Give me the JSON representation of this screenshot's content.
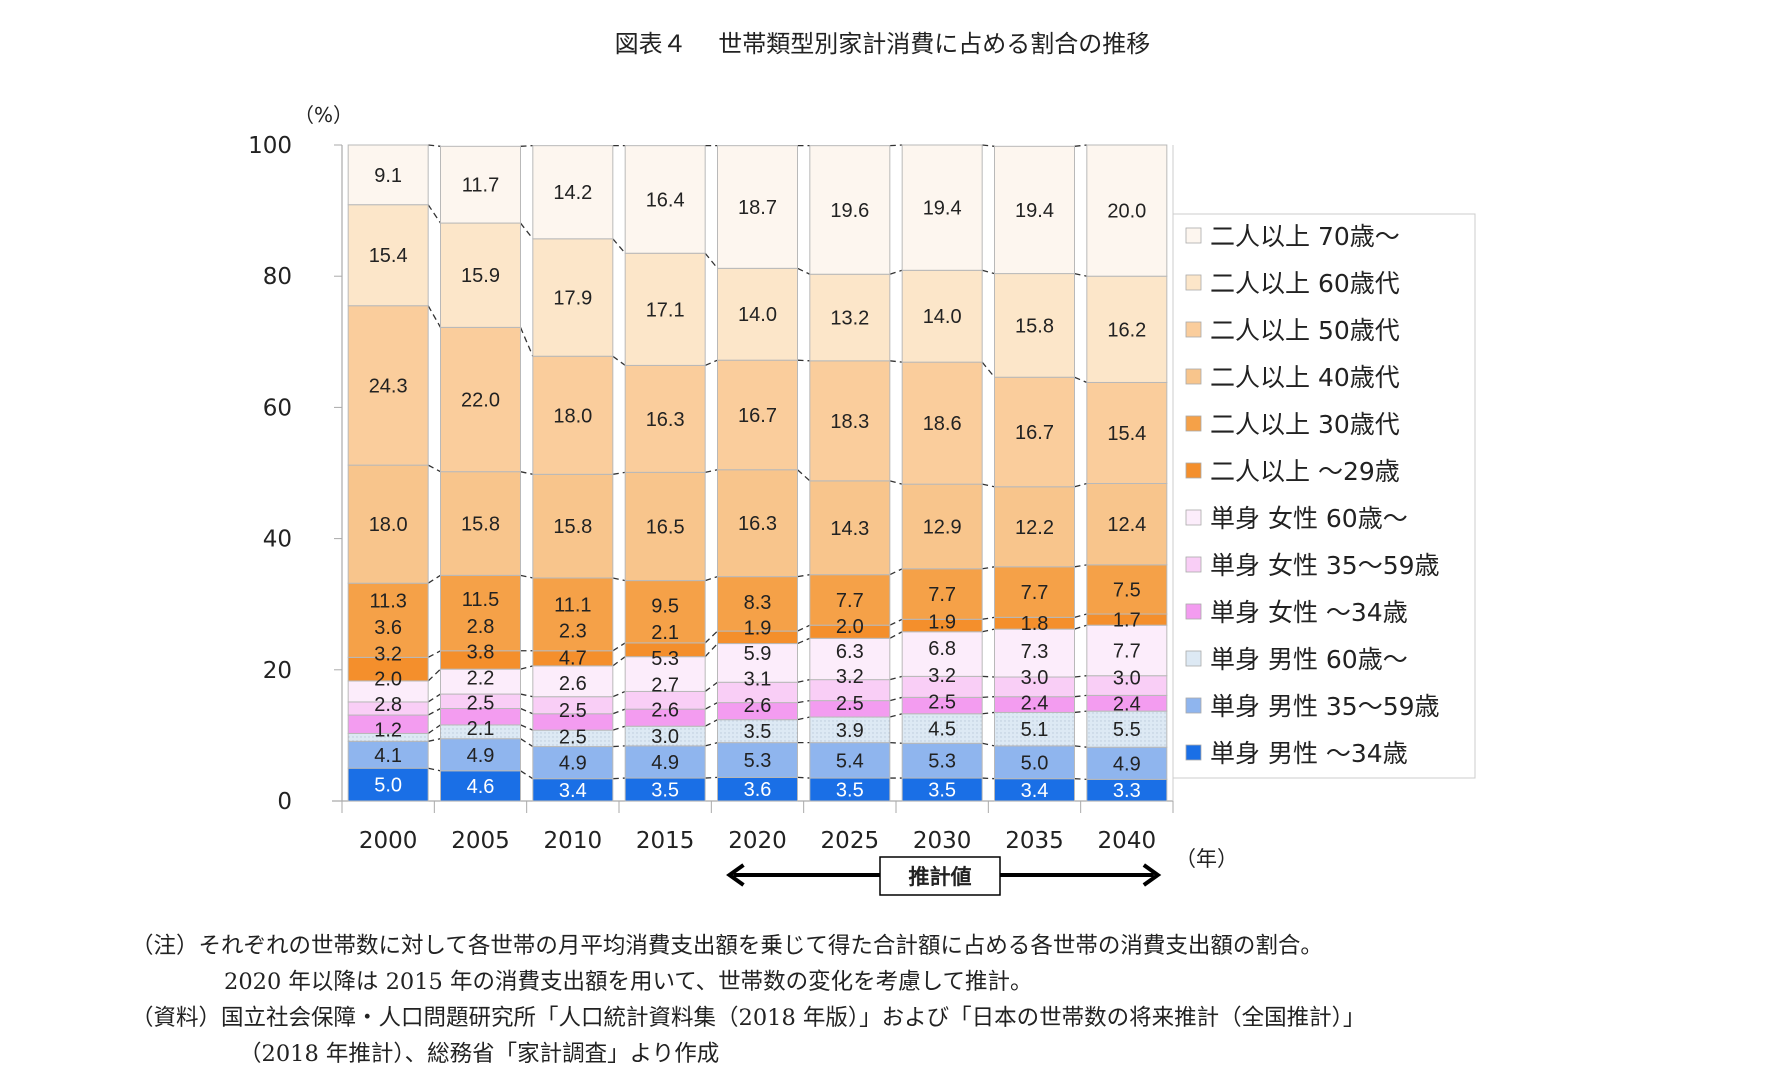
{
  "title": "図表４　 世帯類型別家計消費に占める割合の推移",
  "chart_data": {
    "type": "bar",
    "stacked": true,
    "title": "図表４　 世帯類型別家計消費に占める割合の推移",
    "ylabel": "（%）",
    "xlabel": "（年）",
    "ylim": [
      0,
      100
    ],
    "yticks": [
      "0",
      "20",
      "40",
      "60",
      "80",
      "100"
    ],
    "categories": [
      "2000",
      "2005",
      "2010",
      "2015",
      "2020",
      "2025",
      "2030",
      "2035",
      "2040"
    ],
    "legend_position": "right",
    "projection_label": "推計値",
    "projection_range": [
      "2020",
      "2040"
    ],
    "series": [
      {
        "name": "単身 男性 ～34歳",
        "color": "#1a6fe6",
        "values": [
          5.0,
          4.6,
          3.4,
          3.5,
          3.6,
          3.5,
          3.5,
          3.4,
          3.3
        ]
      },
      {
        "name": "単身 男性 35～59歳",
        "color": "#8fb5ee",
        "values": [
          4.1,
          4.9,
          4.9,
          4.9,
          5.3,
          5.4,
          5.3,
          5.0,
          4.9
        ]
      },
      {
        "name": "単身 男性 60歳～",
        "color": "#dde9f4",
        "values": [
          1.2,
          2.1,
          2.5,
          3.0,
          3.5,
          3.9,
          4.5,
          5.1,
          5.5
        ]
      },
      {
        "name": "単身 女性 ～34歳",
        "color": "#f39cf0",
        "values": [
          2.8,
          2.5,
          2.5,
          2.6,
          2.6,
          2.5,
          2.5,
          2.4,
          2.4
        ]
      },
      {
        "name": "単身 女性 35～59歳",
        "color": "#f9cef6",
        "values": [
          2.0,
          2.2,
          2.6,
          2.7,
          3.1,
          3.2,
          3.2,
          3.0,
          3.0
        ]
      },
      {
        "name": "単身 女性 60歳～",
        "color": "#fcedfb",
        "values": [
          3.2,
          3.8,
          4.7,
          5.3,
          5.9,
          6.3,
          6.8,
          7.3,
          7.7
        ]
      },
      {
        "name": "二人以上 ～29歳",
        "color": "#f48f2c",
        "values": [
          3.6,
          2.8,
          2.3,
          2.1,
          1.9,
          2.0,
          1.9,
          1.8,
          1.7
        ]
      },
      {
        "name": "二人以上 30歳代",
        "color": "#f5a148",
        "values": [
          11.3,
          11.5,
          11.1,
          9.5,
          8.3,
          7.7,
          7.7,
          7.7,
          7.5
        ]
      },
      {
        "name": "二人以上 40歳代",
        "color": "#f8c58c",
        "values": [
          18.0,
          15.8,
          15.8,
          16.5,
          16.3,
          14.3,
          12.9,
          12.2,
          12.4
        ]
      },
      {
        "name": "二人以上 50歳代",
        "color": "#facd9c",
        "values": [
          24.3,
          22.0,
          18.0,
          16.3,
          16.7,
          18.3,
          18.6,
          16.7,
          15.4
        ]
      },
      {
        "name": "二人以上 60歳代",
        "color": "#fce6c9",
        "values": [
          15.4,
          15.9,
          17.9,
          17.1,
          14.0,
          13.2,
          14.0,
          15.8,
          16.2
        ]
      },
      {
        "name": "二人以上 70歳～",
        "color": "#fdf6ef",
        "values": [
          9.1,
          11.7,
          14.2,
          16.4,
          18.7,
          19.6,
          19.4,
          19.4,
          20.0
        ]
      }
    ]
  },
  "notes": [
    "（注）それぞれの世帯数に対して各世帯の月平均消費支出額を乗じて得た合計額に占める各世帯の消費支出額の割合。",
    "2020 年以降は 2015 年の消費支出額を用いて、世帯数の変化を考慮して推計。",
    "（資料）国立社会保障・人口問題研究所「人口統計資料集（2018 年版）」および「日本の世帯数の将来推計（全国推計）」",
    "（2018 年推計）、総務省「家計調査」より作成"
  ]
}
